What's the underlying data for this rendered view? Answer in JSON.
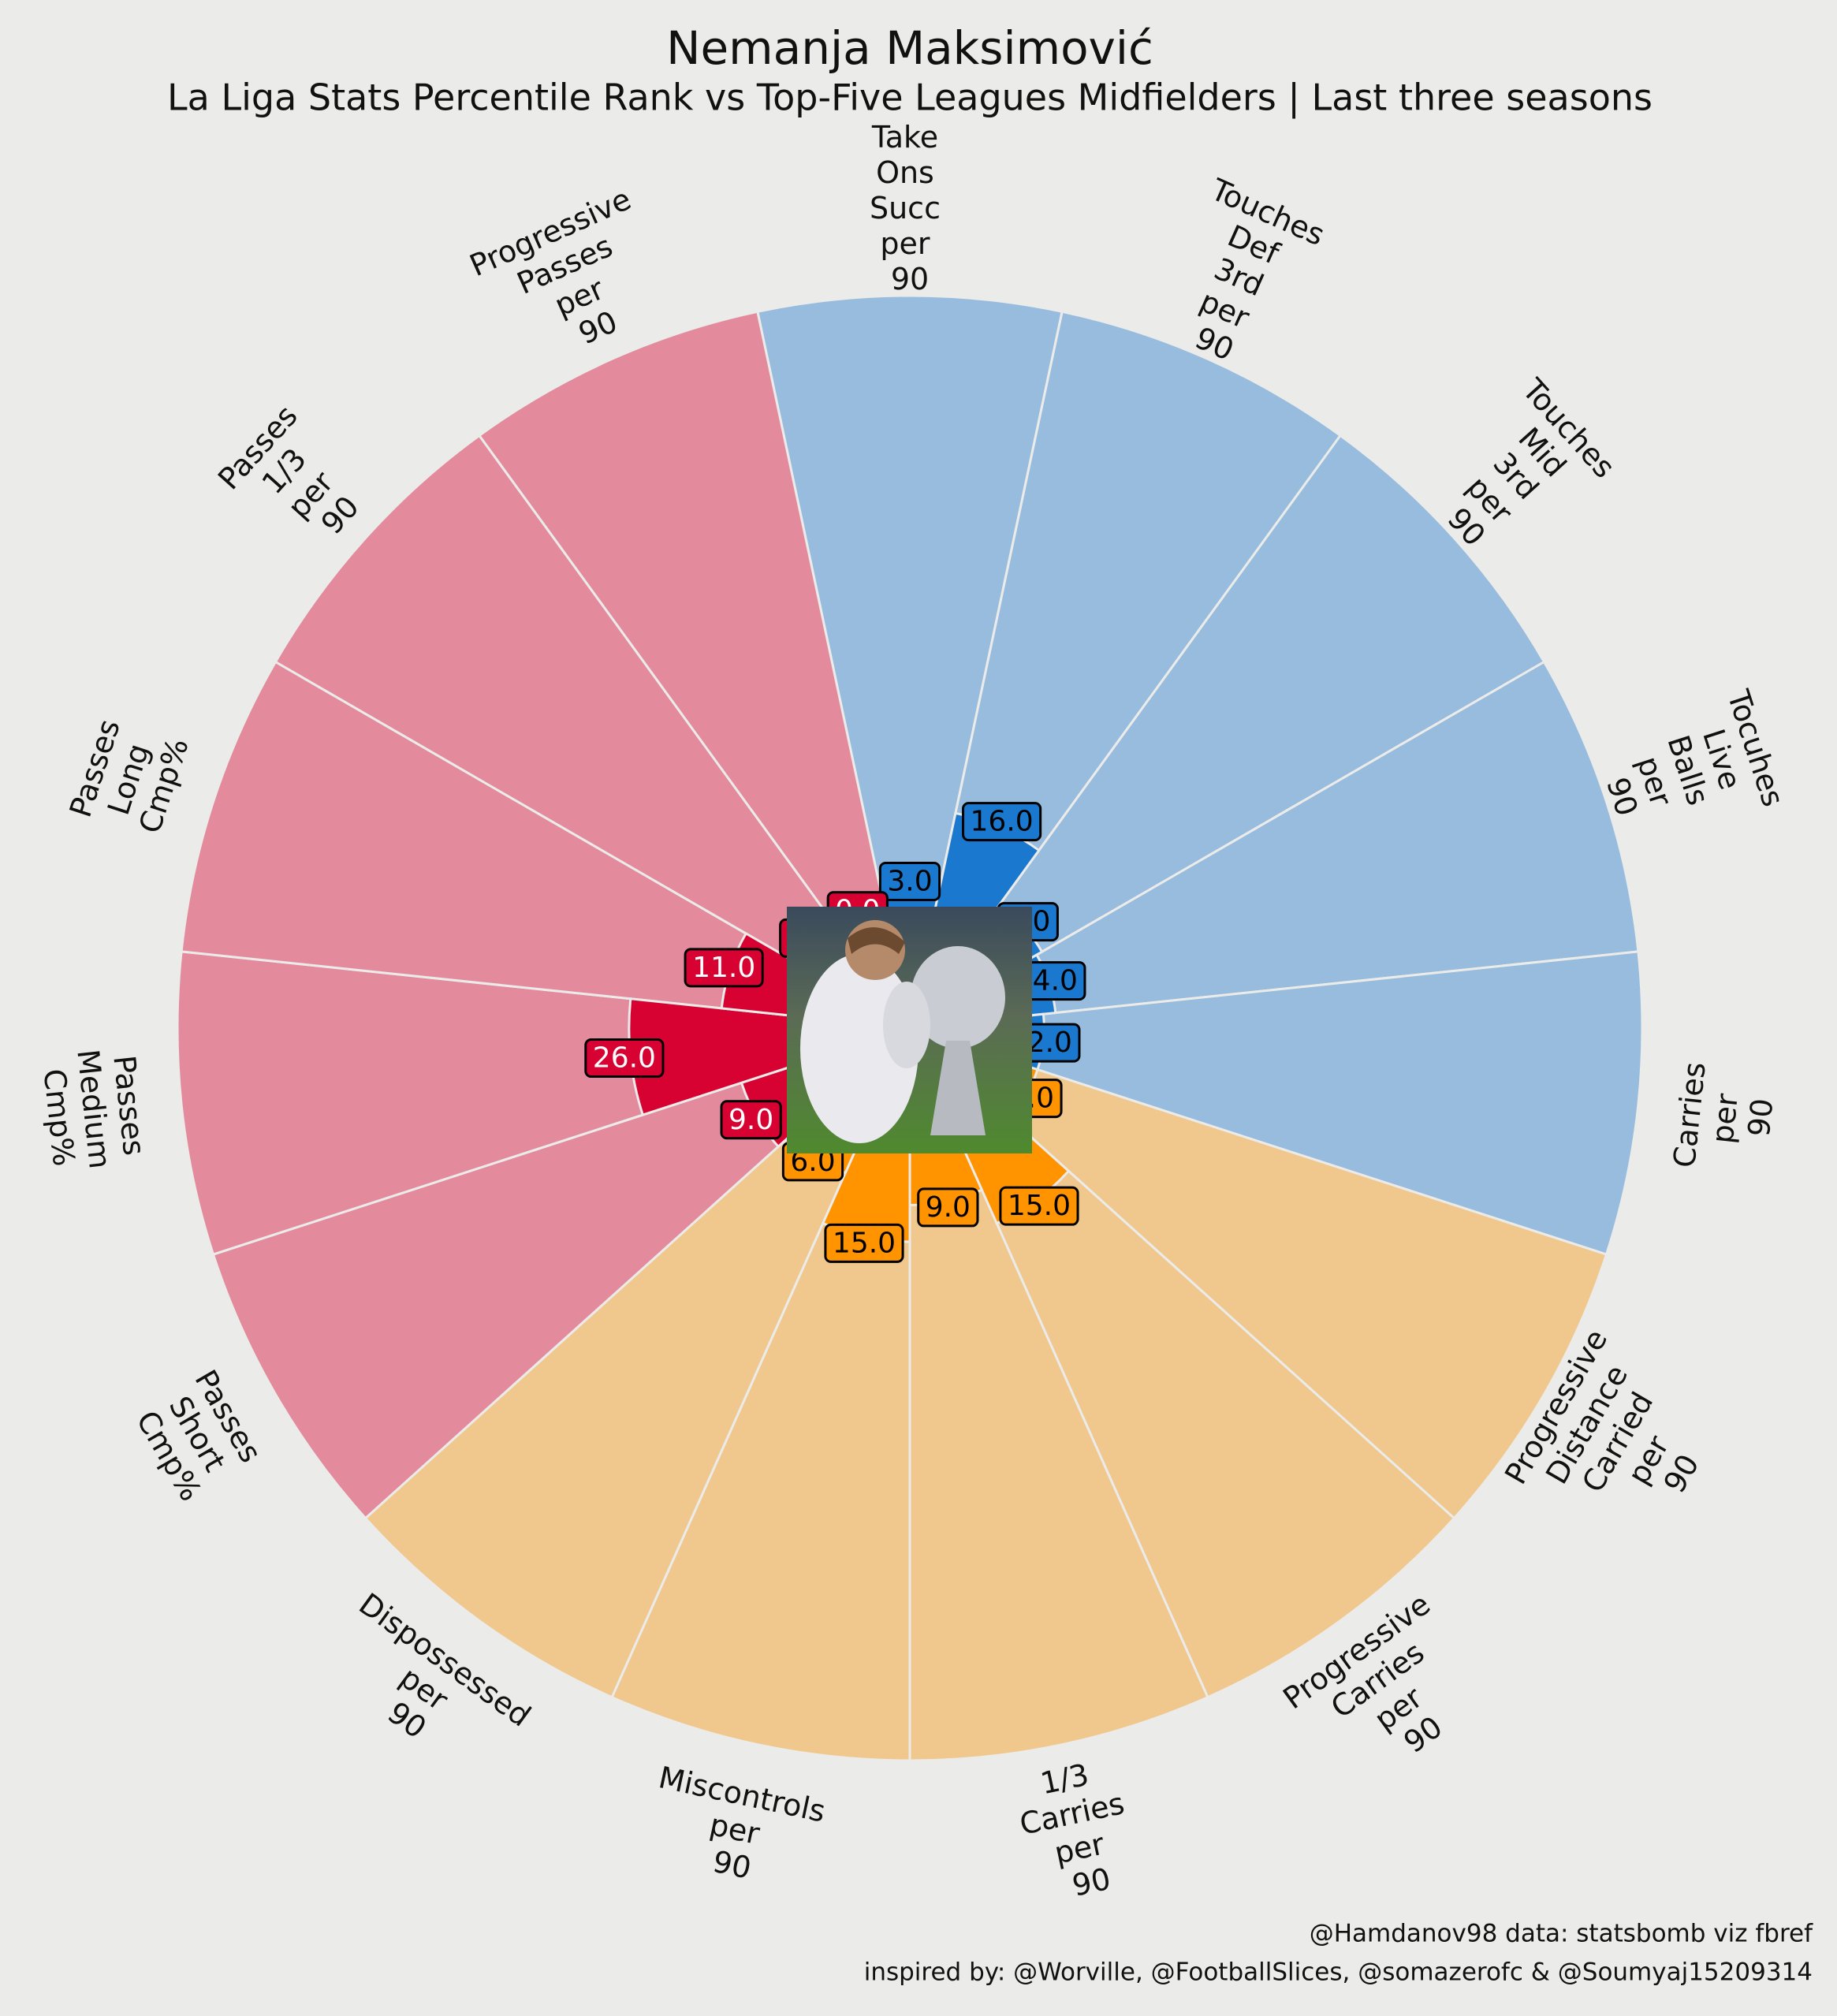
{
  "chart_data": {
    "type": "polar_bar",
    "title": "Nemanja Maksimović",
    "subtitle": "La Liga Stats Percentile Rank vs Top-Five Leagues Midfielders | Last three seasons",
    "footer": [
      "@Hamdanov98 data: statsbomb viz fbref",
      "inspired by: @Worville, @FootballSlices, @somazerofc & @Soumyaj15209314"
    ],
    "categories": [
      "Take Ons Succ per 90",
      "Touches Def 3rd per 90",
      "Touches Mid 3rd per 90",
      "Tocuhes Live Balls per 90",
      "Carries per 90",
      "Progressive Distance Carried per 90",
      "Progressive Carries per 90",
      "1/3 Carries per 90",
      "Miscontrols per 90",
      "Dispossessed per 90",
      "Passes Short Cmp%",
      "Passes Medium Cmp%",
      "Passes Long Cmp%",
      "Passes 1/3 per 90",
      "Progressive Passes per 90"
    ],
    "values": [
      3,
      16,
      5,
      4,
      2,
      2,
      15,
      9,
      15,
      6,
      9,
      26,
      11,
      1,
      0
    ],
    "value_labels": [
      "3.0",
      "16.0",
      "5.0",
      "4.0",
      "2.0",
      "2.0",
      "15.0",
      "9.0",
      "15.0",
      "6.0",
      "9.0",
      "26.0",
      "11.0",
      "1.0",
      "0.0"
    ],
    "colors": [
      "#1a78cf",
      "#1a78cf",
      "#1a78cf",
      "#1a78cf",
      "#1a78cf",
      "#ff9300",
      "#ff9300",
      "#ff9300",
      "#ff9300",
      "#ff9300",
      "#d70232",
      "#d70232",
      "#d70232",
      "#d70232",
      "#d70232"
    ],
    "background_colors": [
      "#98bcde",
      "#98bcde",
      "#98bcde",
      "#98bcde",
      "#98bcde",
      "#f0c78d",
      "#f0c78d",
      "#f0c78d",
      "#f0c78d",
      "#f0c78d",
      "#e38b9d",
      "#e38b9d",
      "#e38b9d",
      "#e38b9d",
      "#e38b9d"
    ],
    "label_text_colors": [
      "#000000",
      "#000000",
      "#000000",
      "#000000",
      "#000000",
      "#000000",
      "#000000",
      "#000000",
      "#000000",
      "#000000",
      "#ffffff",
      "#ffffff",
      "#ffffff",
      "#ffffff",
      "#ffffff"
    ],
    "ylim": [
      -20,
      100
    ]
  }
}
